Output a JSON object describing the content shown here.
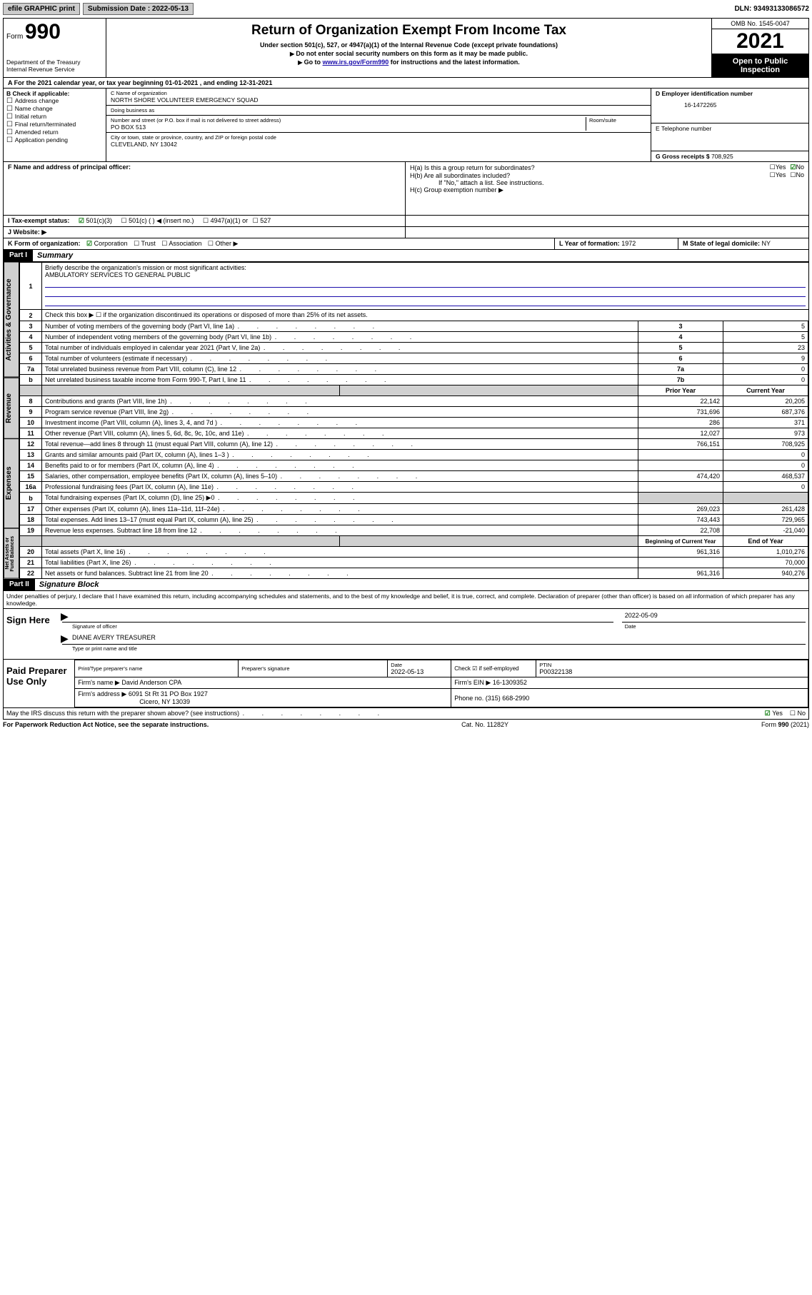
{
  "colors": {
    "link": "#1a0dab",
    "black": "#000000",
    "shade": "#d0d0d0",
    "green": "#0a7a0a"
  },
  "topbar": {
    "efile": "efile GRAPHIC print",
    "sub_label": "Submission Date : ",
    "sub_date": "2022-05-13",
    "dln_label": "DLN: ",
    "dln": "93493133086572"
  },
  "header": {
    "form_word": "Form",
    "form_num": "990",
    "dept": "Department of the Treasury",
    "irs": "Internal Revenue Service",
    "title": "Return of Organization Exempt From Income Tax",
    "sub1": "Under section 501(c), 527, or 4947(a)(1) of the Internal Revenue Code (except private foundations)",
    "sub2": "Do not enter social security numbers on this form as it may be made public.",
    "sub3_a": "Go to ",
    "sub3_link": "www.irs.gov/Form990",
    "sub3_b": " for instructions and the latest information.",
    "omb": "OMB No. 1545-0047",
    "year": "2021",
    "inspect1": "Open to Public",
    "inspect2": "Inspection"
  },
  "rowA": "A For the 2021 calendar year, or tax year beginning 01-01-2021   , and ending 12-31-2021",
  "B": {
    "label": "B Check if applicable:",
    "items": [
      "Address change",
      "Name change",
      "Initial return",
      "Final return/terminated",
      "Amended return",
      "Application pending"
    ]
  },
  "C": {
    "name_label": "C Name of organization",
    "name": "NORTH SHORE VOLUNTEER EMERGENCY SQUAD",
    "dba_label": "Doing business as",
    "dba": "",
    "street_label": "Number and street (or P.O. box if mail is not delivered to street address)",
    "room_label": "Room/suite",
    "street": "PO BOX 513",
    "city_label": "City or town, state or province, country, and ZIP or foreign postal code",
    "city": "CLEVELAND, NY  13042"
  },
  "D": {
    "label": "D Employer identification number",
    "value": "16-1472265"
  },
  "E": {
    "label": "E Telephone number",
    "value": ""
  },
  "G": {
    "label": "G Gross receipts $",
    "value": "708,925"
  },
  "F": {
    "label": "F  Name and address of principal officer:",
    "value": ""
  },
  "H": {
    "a": "H(a)  Is this a group return for subordinates?",
    "b": "H(b)  Are all subordinates included?",
    "bnote": "If \"No,\" attach a list. See instructions.",
    "c_label": "H(c)  Group exemption number ▶",
    "yes": "Yes",
    "no": "No"
  },
  "I": {
    "label": "I   Tax-exempt status:",
    "o1": "501(c)(3)",
    "o2": "501(c) (   ) ◀ (insert no.)",
    "o3": "4947(a)(1) or",
    "o4": "527"
  },
  "J": {
    "label": "J   Website: ▶"
  },
  "K": {
    "label": "K Form of organization:",
    "o1": "Corporation",
    "o2": "Trust",
    "o3": "Association",
    "o4": "Other ▶"
  },
  "L": {
    "label": "L Year of formation: ",
    "value": "1972"
  },
  "M": {
    "label": "M State of legal domicile: ",
    "value": "NY"
  },
  "partI": {
    "header": "Part I",
    "title": "Summary",
    "q1": "Briefly describe the organization's mission or most significant activities:",
    "q1ans": "AMBULATORY SERVICES TO GENERAL PUBLIC",
    "q2": "Check this box ▶ ☐  if the organization discontinued its operations or disposed of more than 25% of its net assets.",
    "rows_gov": [
      {
        "n": "3",
        "t": "Number of voting members of the governing body (Part VI, line 1a)",
        "box": "3",
        "v": "5"
      },
      {
        "n": "4",
        "t": "Number of independent voting members of the governing body (Part VI, line 1b)",
        "box": "4",
        "v": "5"
      },
      {
        "n": "5",
        "t": "Total number of individuals employed in calendar year 2021 (Part V, line 2a)",
        "box": "5",
        "v": "23"
      },
      {
        "n": "6",
        "t": "Total number of volunteers (estimate if necessary)",
        "box": "6",
        "v": "9"
      },
      {
        "n": "7a",
        "t": "Total unrelated business revenue from Part VIII, column (C), line 12",
        "box": "7a",
        "v": "0"
      },
      {
        "n": "b",
        "t": "Net unrelated business taxable income from Form 990-T, Part I, line 11",
        "box": "7b",
        "v": "0"
      }
    ],
    "col_prior": "Prior Year",
    "col_curr": "Current Year",
    "rows_rev": [
      {
        "n": "8",
        "t": "Contributions and grants (Part VIII, line 1h)",
        "p": "22,142",
        "c": "20,205"
      },
      {
        "n": "9",
        "t": "Program service revenue (Part VIII, line 2g)",
        "p": "731,696",
        "c": "687,376"
      },
      {
        "n": "10",
        "t": "Investment income (Part VIII, column (A), lines 3, 4, and 7d )",
        "p": "286",
        "c": "371"
      },
      {
        "n": "11",
        "t": "Other revenue (Part VIII, column (A), lines 5, 6d, 8c, 9c, 10c, and 11e)",
        "p": "12,027",
        "c": "973"
      },
      {
        "n": "12",
        "t": "Total revenue—add lines 8 through 11 (must equal Part VIII, column (A), line 12)",
        "p": "766,151",
        "c": "708,925"
      }
    ],
    "rows_exp": [
      {
        "n": "13",
        "t": "Grants and similar amounts paid (Part IX, column (A), lines 1–3 )",
        "p": "",
        "c": "0"
      },
      {
        "n": "14",
        "t": "Benefits paid to or for members (Part IX, column (A), line 4)",
        "p": "",
        "c": "0"
      },
      {
        "n": "15",
        "t": "Salaries, other compensation, employee benefits (Part IX, column (A), lines 5–10)",
        "p": "474,420",
        "c": "468,537"
      },
      {
        "n": "16a",
        "t": "Professional fundraising fees (Part IX, column (A), line 11e)",
        "p": "",
        "c": "0"
      },
      {
        "n": "b",
        "t": "Total fundraising expenses (Part IX, column (D), line 25) ▶0",
        "p": "SHADE",
        "c": "SHADE"
      },
      {
        "n": "17",
        "t": "Other expenses (Part IX, column (A), lines 11a–11d, 11f–24e)",
        "p": "269,023",
        "c": "261,428"
      },
      {
        "n": "18",
        "t": "Total expenses. Add lines 13–17 (must equal Part IX, column (A), line 25)",
        "p": "743,443",
        "c": "729,965"
      },
      {
        "n": "19",
        "t": "Revenue less expenses. Subtract line 18 from line 12",
        "p": "22,708",
        "c": "-21,040"
      }
    ],
    "col_begin": "Beginning of Current Year",
    "col_end": "End of Year",
    "rows_net": [
      {
        "n": "20",
        "t": "Total assets (Part X, line 16)",
        "p": "961,316",
        "c": "1,010,276"
      },
      {
        "n": "21",
        "t": "Total liabilities (Part X, line 26)",
        "p": "",
        "c": "70,000"
      },
      {
        "n": "22",
        "t": "Net assets or fund balances. Subtract line 21 from line 20",
        "p": "961,316",
        "c": "940,276"
      }
    ],
    "vtab_gov": "Activities & Governance",
    "vtab_rev": "Revenue",
    "vtab_exp": "Expenses",
    "vtab_net": "Net Assets or Fund Balances"
  },
  "partII": {
    "header": "Part II",
    "title": "Signature Block",
    "decl": "Under penalties of perjury, I declare that I have examined this return, including accompanying schedules and statements, and to the best of my knowledge and belief, it is true, correct, and complete. Declaration of preparer (other than officer) is based on all information of which preparer has any knowledge.",
    "sign_here": "Sign Here",
    "sig_officer": "Signature of officer",
    "sig_date": "Date",
    "sig_date_val": "2022-05-09",
    "sig_name_val": "DIANE AVERY TREASURER",
    "sig_name": "Type or print name and title",
    "paid": "Paid Preparer Use Only",
    "pt_name": "Print/Type preparer's name",
    "pt_sig": "Preparer's signature",
    "pt_date": "Date",
    "pt_date_val": "2022-05-13",
    "pt_check": "Check ☑ if self-employed",
    "pt_ptin": "PTIN",
    "pt_ptin_val": "P00322138",
    "pt_firm": "Firm's name    ▶",
    "pt_firm_val": "David Anderson CPA",
    "pt_ein": "Firm's EIN ▶",
    "pt_ein_val": "16-1309352",
    "pt_addr": "Firm's address ▶",
    "pt_addr_val1": "6091 St Rt 31 PO Box 1927",
    "pt_addr_val2": "Cicero, NY  13039",
    "pt_phone": "Phone no.",
    "pt_phone_val": "(315) 668-2990",
    "discuss": "May the IRS discuss this return with the preparer shown above? (see instructions)"
  },
  "footer": {
    "left": "For Paperwork Reduction Act Notice, see the separate instructions.",
    "mid": "Cat. No. 11282Y",
    "right": "Form 990 (2021)"
  }
}
